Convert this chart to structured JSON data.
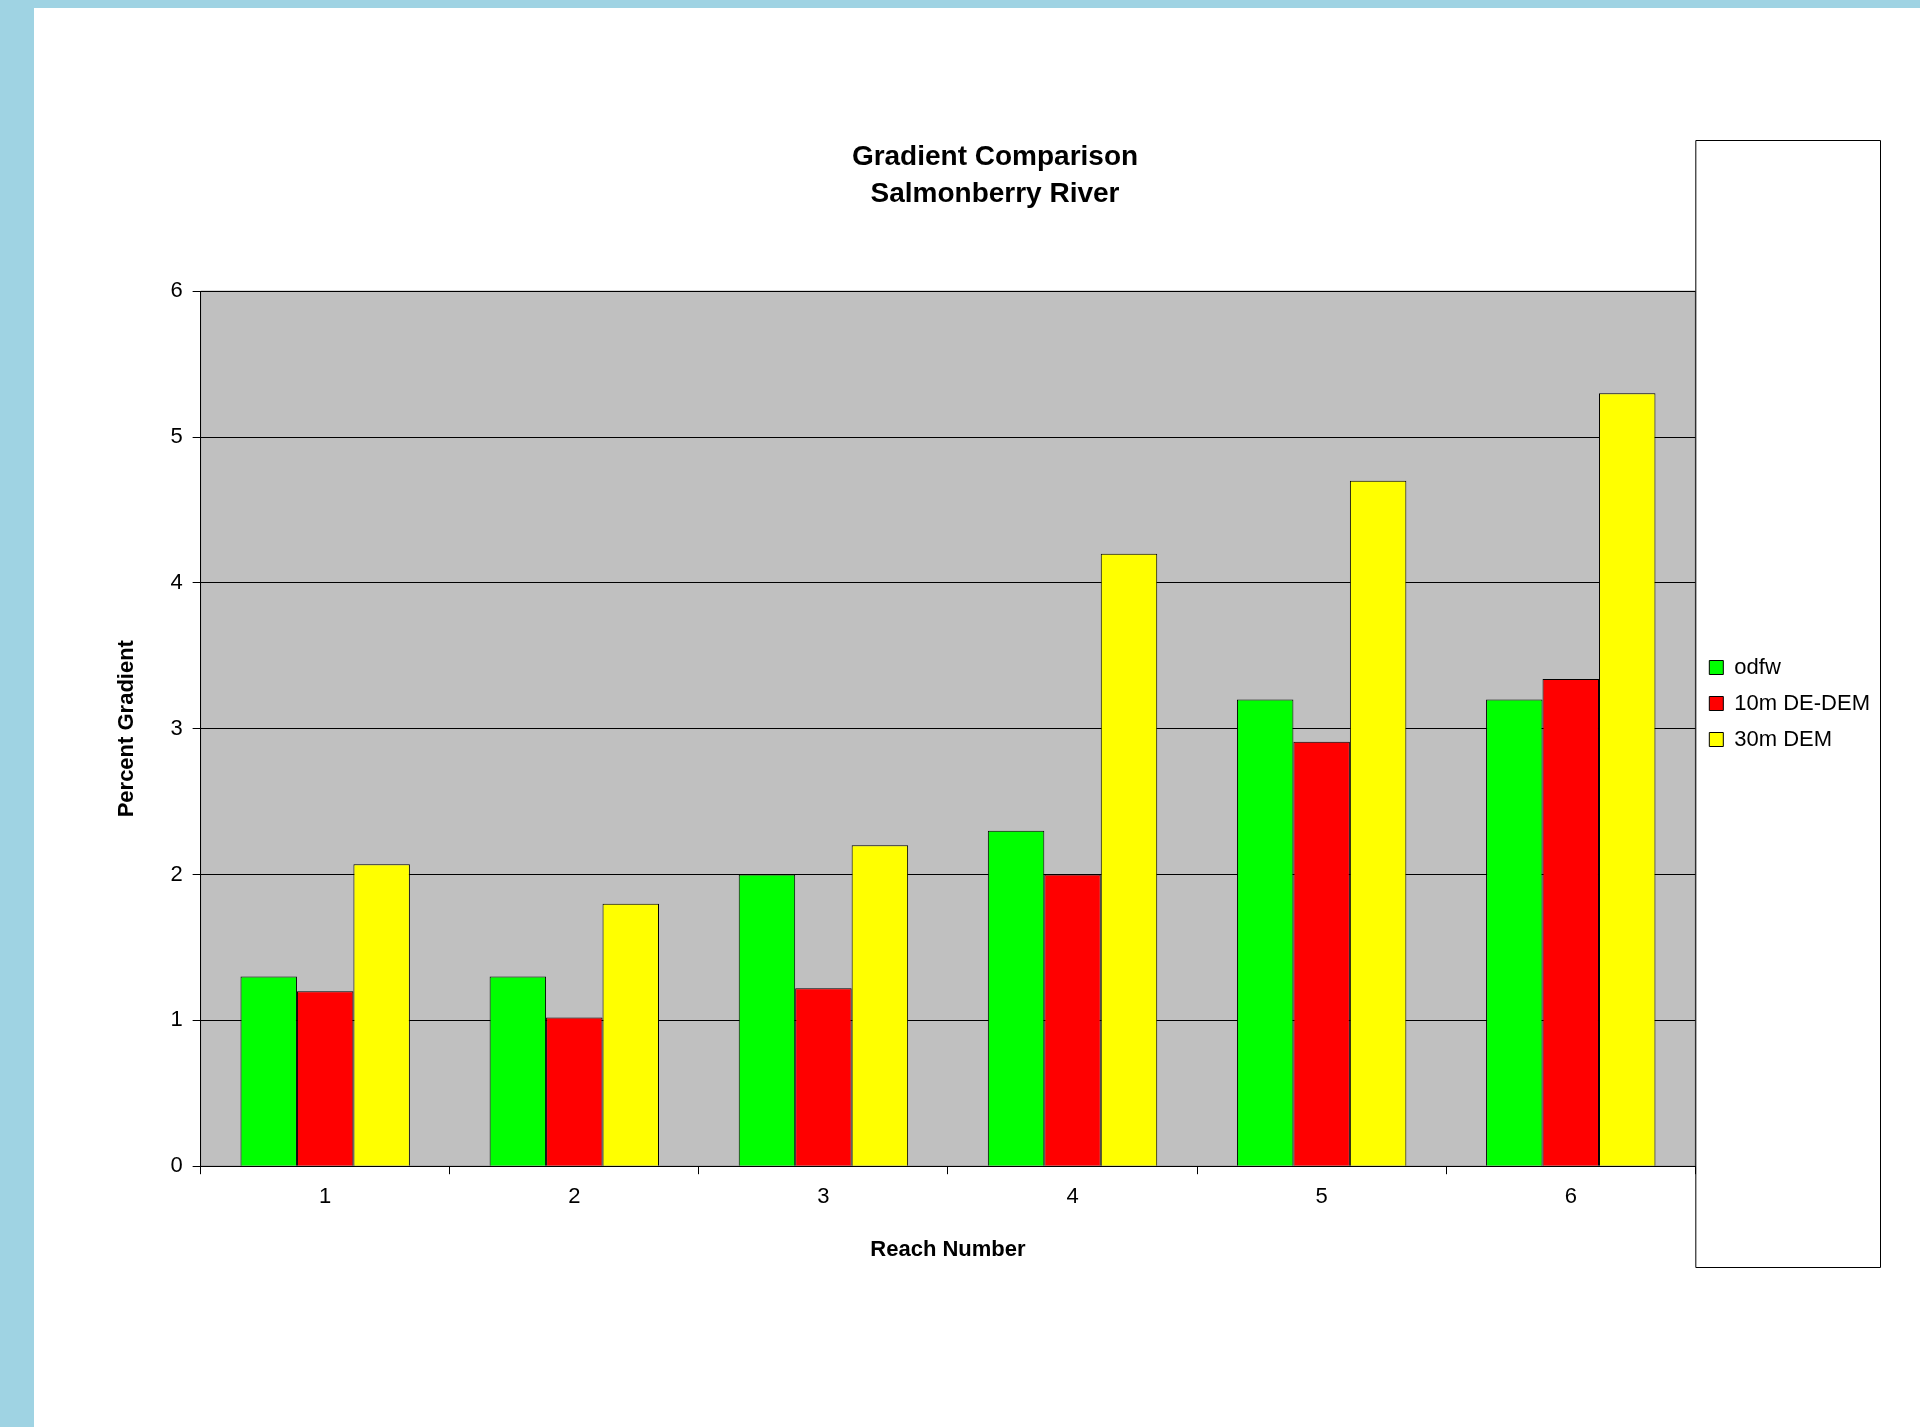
{
  "chart_data": {
    "type": "bar",
    "title": "Gradient Comparison",
    "subtitle": "Salmonberry River",
    "xlabel": "Reach Number",
    "ylabel": "Percent Gradient",
    "categories": [
      "1",
      "2",
      "3",
      "4",
      "5",
      "6"
    ],
    "series": [
      {
        "name": "odfw",
        "color": "#00ff00",
        "values": [
          1.3,
          1.3,
          2.0,
          2.3,
          3.2,
          3.2
        ]
      },
      {
        "name": "10m DE-DEM",
        "color": "#ff0000",
        "values": [
          1.2,
          1.02,
          1.22,
          2.0,
          2.91,
          3.34
        ]
      },
      {
        "name": "30m DEM",
        "color": "#ffff00",
        "values": [
          2.07,
          1.8,
          2.2,
          4.2,
          4.7,
          5.3
        ]
      }
    ],
    "ylim": [
      0,
      6
    ],
    "yticks": [
      0,
      1,
      2,
      3,
      4,
      5,
      6
    ],
    "grid": "y",
    "legend": "right"
  }
}
